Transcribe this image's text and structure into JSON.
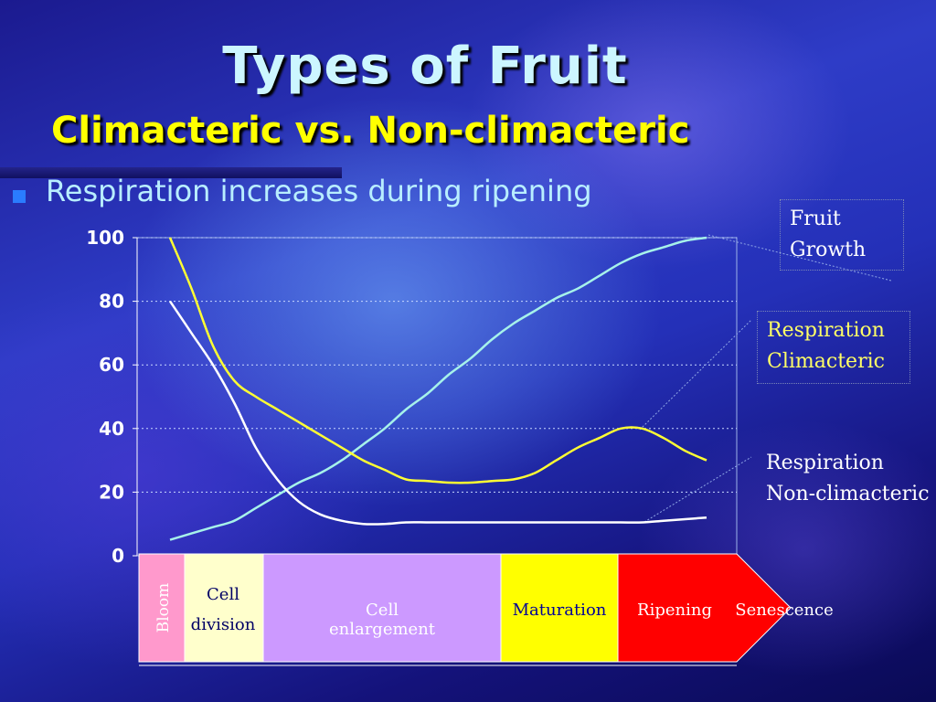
{
  "slide": {
    "title": "Types of Fruit",
    "subtitle": "Climacteric vs.  Non-climacteric",
    "bullet": "Respiration increases during ripening"
  },
  "legend": {
    "fruit_growth": [
      "Fruit",
      "Growth"
    ],
    "resp_climacteric": [
      "Respiration",
      "Climacteric"
    ],
    "resp_nonclimacteric": [
      "Respiration",
      "Non-climacteric"
    ]
  },
  "stages": {
    "bloom": "Bloom",
    "cell_division": [
      "Cell",
      "division"
    ],
    "cell_enlargement": [
      "Cell",
      "enlargement"
    ],
    "maturation": "Maturation",
    "ripening": "Ripening",
    "senescence": "Senescence"
  },
  "colors": {
    "fruit_growth": "#a6f2ea",
    "climacteric": "#ffff33",
    "non_climacteric": "#ffffff",
    "bloom": "#ff99cc",
    "cell_division": "#ffffcc",
    "cell_enlargement": "#cc99ff",
    "maturation": "#ffff00",
    "ripening_senescence": "#ff0000"
  },
  "chart_data": {
    "type": "line",
    "ylim": [
      0,
      100
    ],
    "yticks": [
      "0",
      "20",
      "40",
      "60",
      "80",
      "100"
    ],
    "grid": true,
    "x": [
      0,
      1,
      2,
      3,
      4,
      5,
      6,
      7,
      8,
      9,
      10,
      11,
      12,
      13,
      14,
      15,
      16,
      17,
      18,
      19,
      20,
      21,
      22,
      23,
      24,
      25
    ],
    "series": [
      {
        "name": "Fruit Growth",
        "values": [
          5,
          7,
          9,
          11,
          15,
          19,
          23,
          26,
          30,
          35,
          40,
          46,
          51,
          57,
          62,
          68,
          73,
          77,
          81,
          84,
          88,
          92,
          95,
          97,
          99,
          100
        ]
      },
      {
        "name": "Respiration Climacteric",
        "values": [
          100,
          84,
          66,
          55,
          50,
          46,
          42,
          38,
          34,
          30,
          27,
          24,
          23.5,
          23,
          23,
          23.5,
          24,
          26,
          30,
          34,
          37,
          40,
          40,
          37,
          33,
          30
        ]
      },
      {
        "name": "Respiration Non-climacteric",
        "values": [
          80,
          70,
          60,
          48,
          34,
          24,
          17,
          13,
          11,
          10,
          10,
          10.5,
          10.5,
          10.5,
          10.5,
          10.5,
          10.5,
          10.5,
          10.5,
          10.5,
          10.5,
          10.5,
          10.5,
          11,
          11.5,
          12
        ]
      }
    ]
  }
}
